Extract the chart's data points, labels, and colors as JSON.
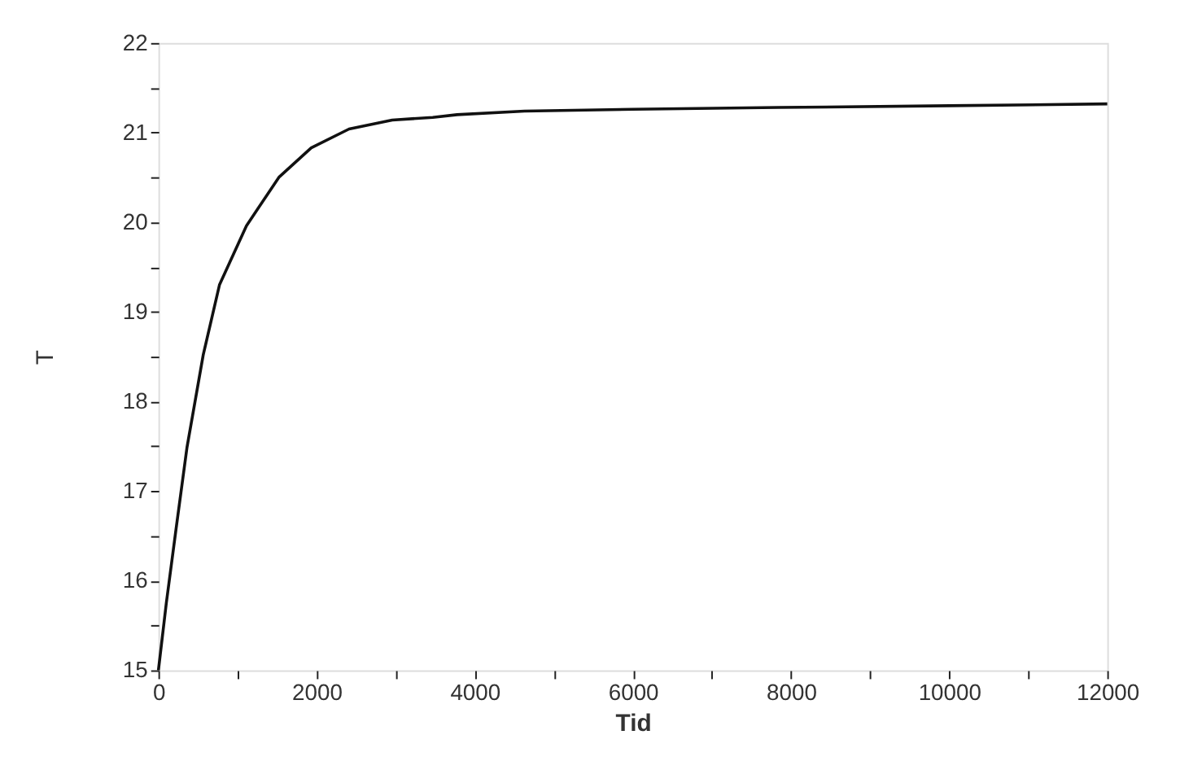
{
  "chart_data": {
    "type": "line",
    "xlabel": "Tid",
    "ylabel": "T",
    "x": [
      0,
      100,
      225,
      362,
      567,
      772,
      1113,
      1523,
      1933,
      2411,
      2957,
      3469,
      3777,
      4631,
      6000,
      7840,
      10000,
      12000
    ],
    "series": [
      {
        "color": "#111111",
        "values": [
          15.0,
          15.75,
          16.59,
          17.49,
          18.52,
          19.3,
          19.96,
          20.5,
          20.83,
          21.04,
          21.14,
          21.17,
          21.2,
          21.24,
          21.26,
          21.28,
          21.3,
          21.32
        ]
      }
    ],
    "xlim": [
      0,
      12000
    ],
    "xticks": [
      0,
      {
        "value": 1000,
        "label": null
      },
      2000,
      {
        "value": 3000,
        "label": null
      },
      4000,
      {
        "value": 5000,
        "label": null
      },
      6000,
      {
        "value": 7000,
        "label": null
      },
      8000,
      {
        "value": 9000,
        "label": null
      },
      10000,
      {
        "value": 11000,
        "label": null
      },
      12000
    ],
    "ylim": [
      15,
      22
    ],
    "yticks": [
      15,
      {
        "value": 15.5,
        "label": null
      },
      16,
      {
        "value": 16.5,
        "label": null
      },
      17,
      {
        "value": 17.5,
        "label": null
      },
      18,
      {
        "value": 18.5,
        "label": null
      },
      19,
      {
        "value": 19.5,
        "label": null
      },
      20,
      {
        "value": 20.5,
        "label": null
      },
      21,
      {
        "value": 21.5,
        "label": null
      },
      22
    ],
    "grid": false,
    "legend": false,
    "marker": "none",
    "line_style": "solid"
  }
}
